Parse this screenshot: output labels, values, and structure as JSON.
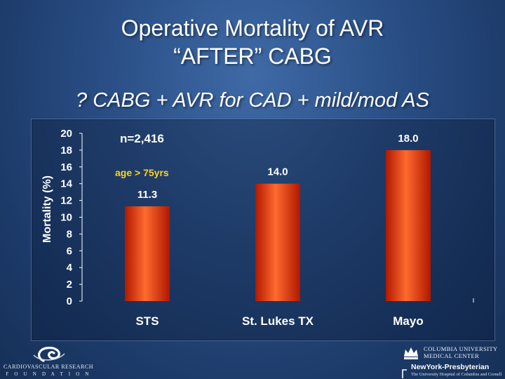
{
  "title": {
    "line1": "Operative Mortality of AVR",
    "line2": "“AFTER” CABG"
  },
  "subtitle": "? CABG + AVR for CAD + mild/mod AS",
  "chart_data": {
    "type": "bar",
    "categories": [
      "STS",
      "St. Lukes TX",
      "Mayo"
    ],
    "values": [
      11.3,
      14.0,
      18.0
    ],
    "value_labels": [
      "11.3",
      "14.0",
      "18.0"
    ],
    "ylabel": "Mortality (%)",
    "xlabel": "",
    "ylim": [
      0,
      20
    ],
    "yticks": [
      "0",
      "2",
      "4",
      "6",
      "8",
      "10",
      "12",
      "14",
      "16",
      "18",
      "20"
    ],
    "annotations": {
      "n": "n=2,416",
      "age": "age > 75yrs"
    },
    "bar_color": "#ff2a00",
    "bar_color_light": "#ff6a2e",
    "bar_color_dark": "#b01800",
    "grid": false,
    "legend": "none"
  },
  "logos": {
    "crf_line1": "CARDIOVASCULAR RESEARCH",
    "crf_line2": "F O U N D A T I O N",
    "cu_line1": "COLUMBIA UNIVERSITY",
    "cu_line2": "MEDICAL CENTER",
    "nyp_name": "NewYork-Presbyterian",
    "nyp_sub": "The University Hospital of Columbia and Cornell"
  }
}
